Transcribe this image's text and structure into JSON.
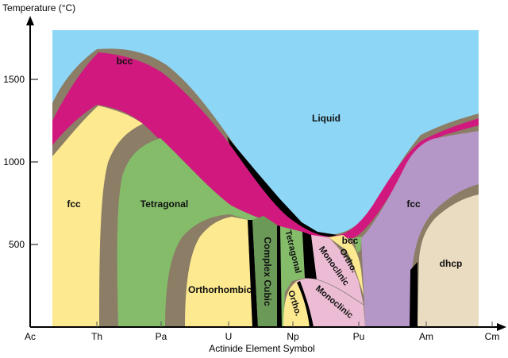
{
  "axes": {
    "y_title": "Temperature (°C)",
    "x_title": "Actinide Element Symbol",
    "y_ticks": [
      "500",
      "1000",
      "1500"
    ],
    "x_ticks": [
      "Ac",
      "Th",
      "Pa",
      "U",
      "Np",
      "Pu",
      "Am",
      "Cm"
    ]
  },
  "phases": {
    "liquid": "Liquid",
    "bcc_left": "bcc",
    "bcc_pu": "bcc",
    "fcc_th": "fcc",
    "tetragonal_pa": "Tetragonal",
    "orthorhombic_u": "Orthorhombic",
    "complex_cubic": "Complex Cubic",
    "tetragonal_np": "Tetragonal",
    "ortho_np": "Ortho.",
    "monoclinic_upper": "Monoclinic",
    "monoclinic_lower": "Monoclinic",
    "ortho_pu": "Ortho.",
    "fcc_am": "fcc",
    "dhcp": "dhcp"
  },
  "colors": {
    "liquid": "#8ed6f6",
    "bcc": "#d0187f",
    "two_phase": "#8b7d66",
    "fcc_yellow": "#fde98f",
    "tetragonal": "#84bc6a",
    "complex_cubic": "#6b9a58",
    "monoclinic": "#ebbcd3",
    "fcc_purple": "#b497c6",
    "dhcp": "#e9dcc0"
  }
}
